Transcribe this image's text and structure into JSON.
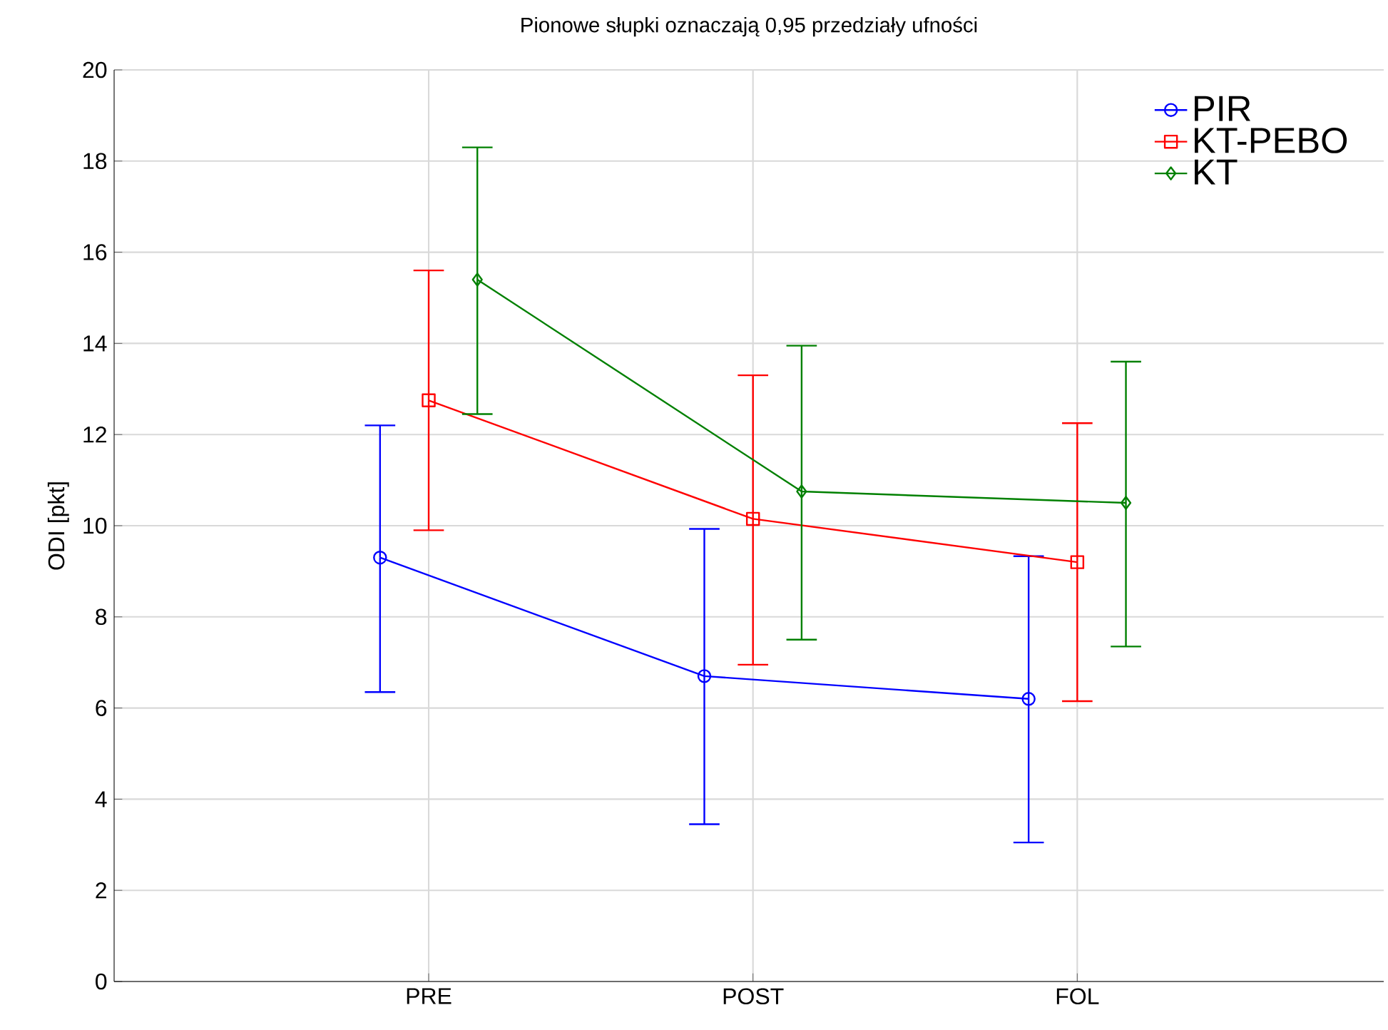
{
  "chart_data": {
    "type": "line",
    "title": "Pionowe słupki oznaczają 0,95 przedziały ufności",
    "ylabel": "ODI [pkt]",
    "categories": [
      "PRE",
      "POST",
      "FOL"
    ],
    "series": [
      {
        "name": "PIR",
        "color": "#0000ff",
        "marker": "circle",
        "values": [
          9.3,
          6.7,
          6.2
        ],
        "errors": [
          [
            6.35,
            12.2
          ],
          [
            3.45,
            9.93
          ],
          [
            3.05,
            9.33
          ]
        ]
      },
      {
        "name": "KT-PEBO",
        "color": "#ff0000",
        "marker": "square",
        "values": [
          12.75,
          10.15,
          9.2
        ],
        "errors": [
          [
            9.9,
            15.6
          ],
          [
            6.95,
            13.3
          ],
          [
            6.15,
            12.25
          ]
        ]
      },
      {
        "name": "KT",
        "color": "#008000",
        "marker": "diamond",
        "values": [
          15.4,
          10.75,
          10.5
        ],
        "errors": [
          [
            12.45,
            18.3
          ],
          [
            7.5,
            13.95
          ],
          [
            7.35,
            13.6
          ]
        ]
      }
    ],
    "ylim": [
      0,
      20
    ],
    "yticks": [
      0,
      2,
      4,
      6,
      8,
      10,
      12,
      14,
      16,
      18,
      20
    ],
    "grid": true,
    "legend": "top right",
    "line_style": "solid"
  }
}
